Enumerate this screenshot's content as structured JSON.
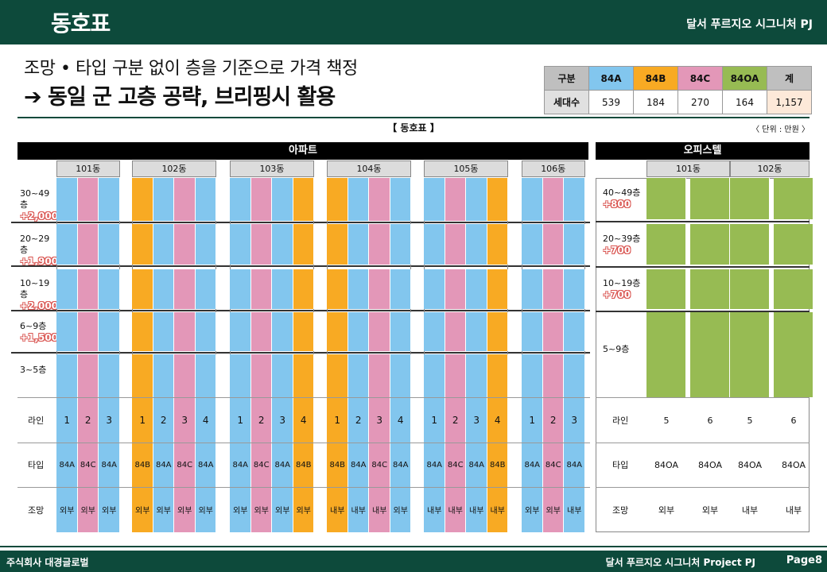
{
  "header": {
    "title": "동호표",
    "project": "달서 푸르지오 시그니처 PJ"
  },
  "headline": {
    "line1": "조망 • 타입 구분 없이 층을 기준으로 가격 책정",
    "line2": "➔ 동일 군 고층 공략, 브리핑시 활용"
  },
  "summary": {
    "header": [
      "구분",
      "84A",
      "84B",
      "84C",
      "84OA",
      "계"
    ],
    "row": [
      "세대수",
      "539",
      "184",
      "270",
      "164",
      "1,157"
    ]
  },
  "caption": "【 동호표 】",
  "unit": "〈 단위 : 만원 〉",
  "colors": {
    "84A": "#82c6ee",
    "84B": "#f8aa23",
    "84C": "#e397b8",
    "84OA": "#97bb53",
    "gray": "#bfbfbf",
    "total": "#fde9d9",
    "header_bg": "#0d4a3b"
  },
  "apartment": {
    "section_label": "아파트",
    "floors": [
      {
        "label": "30~49층",
        "price": "+2,000"
      },
      {
        "label": "20~29층",
        "price": "+1,900"
      },
      {
        "label": "10~19층",
        "price": "+2,000"
      },
      {
        "label": "6~9층",
        "price": "+1,500"
      },
      {
        "label": "3~5층",
        "price": ""
      }
    ],
    "row_labels": {
      "line": "라인",
      "type": "타입",
      "view": "조망"
    },
    "buildings": [
      {
        "name": "101동",
        "lines": [
          "1",
          "2",
          "3"
        ],
        "types": [
          "84A",
          "84C",
          "84A"
        ],
        "views": [
          "외부",
          "외부",
          "외부"
        ]
      },
      {
        "name": "102동",
        "lines": [
          "1",
          "2",
          "3",
          "4"
        ],
        "types": [
          "84B",
          "84A",
          "84C",
          "84A"
        ],
        "views": [
          "외부",
          "외부",
          "외부",
          "외부"
        ]
      },
      {
        "name": "103동",
        "lines": [
          "1",
          "2",
          "3",
          "4"
        ],
        "types": [
          "84A",
          "84C",
          "84A",
          "84B"
        ],
        "views": [
          "외부",
          "외부",
          "외부",
          "외부"
        ]
      },
      {
        "name": "104동",
        "lines": [
          "1",
          "2",
          "3",
          "4"
        ],
        "types": [
          "84B",
          "84A",
          "84C",
          "84A"
        ],
        "views": [
          "내부",
          "내부",
          "내부",
          "외부"
        ]
      },
      {
        "name": "105동",
        "lines": [
          "1",
          "2",
          "3",
          "4"
        ],
        "types": [
          "84A",
          "84C",
          "84A",
          "84B"
        ],
        "views": [
          "내부",
          "내부",
          "내부",
          "내부"
        ]
      },
      {
        "name": "106동",
        "lines": [
          "1",
          "2",
          "3"
        ],
        "types": [
          "84A",
          "84C",
          "84A"
        ],
        "views": [
          "외부",
          "외부",
          "내부"
        ]
      }
    ]
  },
  "officetel": {
    "section_label": "오피스텔",
    "floors": [
      {
        "label": "40~49층",
        "price": "+800"
      },
      {
        "label": "20~39층",
        "price": "+700"
      },
      {
        "label": "10~19층",
        "price": "+700"
      },
      {
        "label": "5~9층",
        "price": ""
      }
    ],
    "row_labels": {
      "line": "라인",
      "type": "타입",
      "view": "조망"
    },
    "buildings": [
      {
        "name": "101동",
        "lines": [
          "5",
          "6"
        ],
        "types": [
          "84OA",
          "84OA"
        ],
        "views": [
          "외부",
          "외부"
        ]
      },
      {
        "name": "102동",
        "lines": [
          "5",
          "6"
        ],
        "types": [
          "84OA",
          "84OA"
        ],
        "views": [
          "내부",
          "내부"
        ]
      }
    ]
  },
  "footer": {
    "company": "주식회사 대경글로벌",
    "project": "달서 푸르지오 시그니처 Project PJ",
    "page": "Page8"
  }
}
